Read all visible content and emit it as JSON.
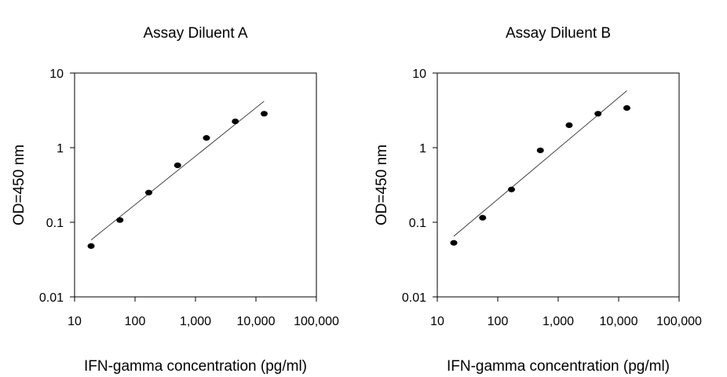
{
  "chart_data": [
    {
      "type": "scatter",
      "title": "Assay Diluent A",
      "xlabel": "IFN-gamma concentration (pg/ml)",
      "ylabel": "OD=450 nm",
      "xscale": "log",
      "yscale": "log",
      "xlim": [
        10,
        100000
      ],
      "ylim": [
        0.01,
        10
      ],
      "xticks": [
        "10",
        "100",
        "1,000",
        "10,000",
        "100,000"
      ],
      "yticks": [
        "10",
        "1",
        "0.1",
        "0.01"
      ],
      "grid": false,
      "series": [
        {
          "x": [
            18.75,
            56.25,
            168.75,
            506.25,
            1518.75,
            4556.25,
            13668.75
          ],
          "y": [
            0.048,
            0.107,
            0.25,
            0.58,
            1.35,
            2.25,
            2.85
          ]
        }
      ],
      "fit_line": {
        "x": [
          18.75,
          13668.75
        ],
        "y": [
          0.058,
          4.2
        ]
      }
    },
    {
      "type": "scatter",
      "title": "Assay Diluent B",
      "xlabel": "IFN-gamma concentration (pg/ml)",
      "ylabel": "OD=450 nm",
      "xscale": "log",
      "yscale": "log",
      "xlim": [
        10,
        100000
      ],
      "ylim": [
        0.01,
        10
      ],
      "xticks": [
        "10",
        "100",
        "1,000",
        "10,000",
        "100,000"
      ],
      "yticks": [
        "10",
        "1",
        "0.1",
        "0.01"
      ],
      "grid": false,
      "series": [
        {
          "x": [
            18.75,
            56.25,
            168.75,
            506.25,
            1518.75,
            4556.25,
            13668.75
          ],
          "y": [
            0.053,
            0.115,
            0.275,
            0.92,
            2.0,
            2.85,
            3.4
          ]
        }
      ],
      "fit_line": {
        "x": [
          18.75,
          13668.75
        ],
        "y": [
          0.065,
          5.8
        ]
      }
    }
  ]
}
